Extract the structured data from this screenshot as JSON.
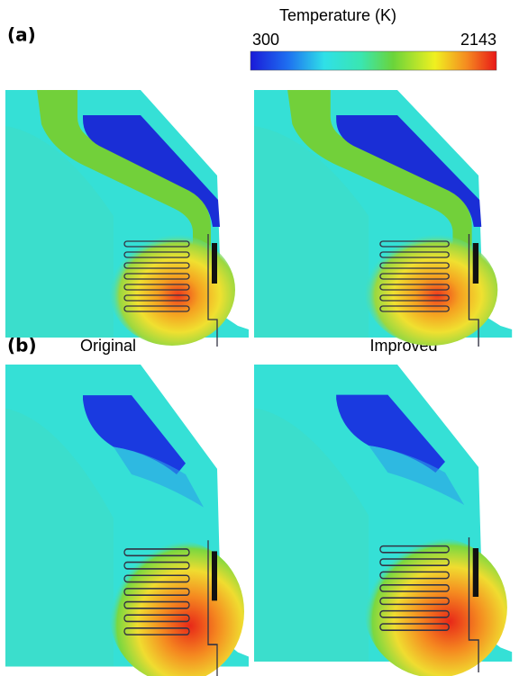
{
  "labels": {
    "a": "(a)",
    "b": "(b)"
  },
  "colorbar": {
    "title": "Temperature (K)",
    "min": "300",
    "max": "2143"
  },
  "columns": [
    "Original",
    "Improved"
  ]
}
